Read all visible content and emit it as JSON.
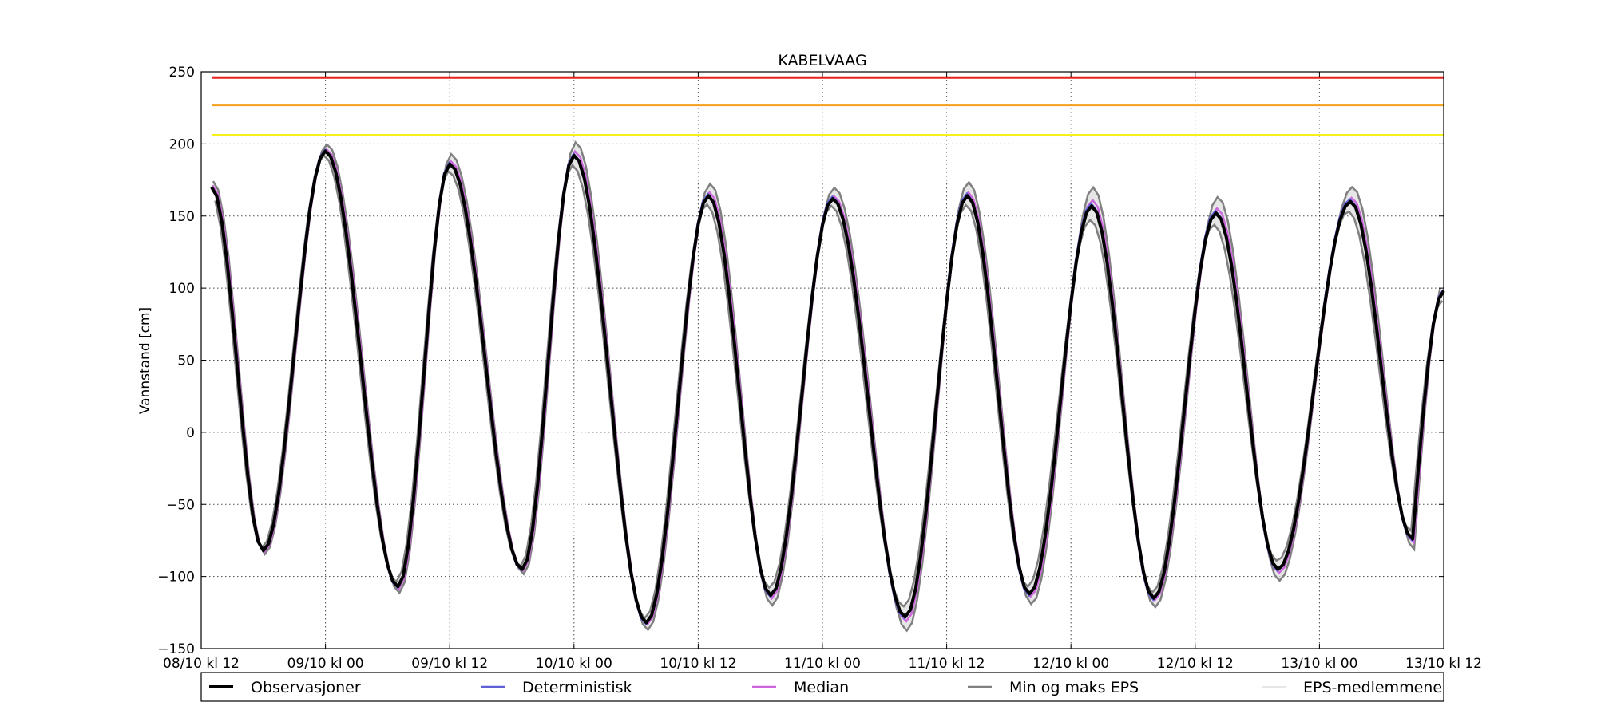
{
  "chart_data": {
    "type": "line",
    "title": "KABELVAAG",
    "ylabel": "Vannstand [cm]",
    "xlabel": "",
    "ylim": [
      -150,
      250
    ],
    "xlim_hours": [
      0,
      120
    ],
    "yticks": [
      250,
      200,
      150,
      100,
      50,
      0,
      -50,
      -100,
      -150
    ],
    "ytick_labels": [
      "250",
      "200",
      "150",
      "100",
      "50",
      "0",
      "−50",
      "−100",
      "−150"
    ],
    "xticks": [
      {
        "hour": 0,
        "label": "08/10 kl 12"
      },
      {
        "hour": 12,
        "label": "09/10 kl 00"
      },
      {
        "hour": 24,
        "label": "09/10 kl 12"
      },
      {
        "hour": 36,
        "label": "10/10 kl 00"
      },
      {
        "hour": 48,
        "label": "10/10 kl 12"
      },
      {
        "hour": 60,
        "label": "11/10 kl 00"
      },
      {
        "hour": 72,
        "label": "11/10 kl 12"
      },
      {
        "hour": 84,
        "label": "12/10 kl 00"
      },
      {
        "hour": 96,
        "label": "12/10 kl 12"
      },
      {
        "hour": 108,
        "label": "13/10 kl 00"
      },
      {
        "hour": 120,
        "label": "13/10 kl 12"
      }
    ],
    "grid": true,
    "legend_position": "bottom",
    "thresholds": [
      {
        "value": 246,
        "color": "#e8221e"
      },
      {
        "value": 227,
        "color": "#f5a01a"
      },
      {
        "value": 206,
        "color": "#f6f01b"
      }
    ],
    "observations": {
      "name": "Observasjoner",
      "color": "#000000",
      "peaks": [
        [
          1,
          170
        ],
        [
          12,
          195
        ],
        [
          24,
          186
        ],
        [
          36,
          192
        ],
        [
          49,
          164
        ],
        [
          61,
          162
        ],
        [
          74,
          164
        ],
        [
          86,
          157
        ],
        [
          98,
          152
        ],
        [
          111,
          160
        ]
      ],
      "troughs": [
        [
          6,
          -82
        ],
        [
          19,
          -107
        ],
        [
          31,
          -95
        ],
        [
          43,
          -132
        ],
        [
          55,
          -113
        ],
        [
          68,
          -128
        ],
        [
          80,
          -112
        ],
        [
          92,
          -115
        ],
        [
          104,
          -95
        ],
        [
          117,
          -74
        ]
      ],
      "end": [
        120,
        98
      ]
    },
    "series": [
      {
        "name": "Deterministisk",
        "color": "#5f5fd6"
      },
      {
        "name": "Median",
        "color": "#cc66dd"
      },
      {
        "name": "Min og maks EPS",
        "color": "#808080"
      },
      {
        "name": "EPS-medlemmene",
        "color": "#dddddd"
      }
    ]
  }
}
